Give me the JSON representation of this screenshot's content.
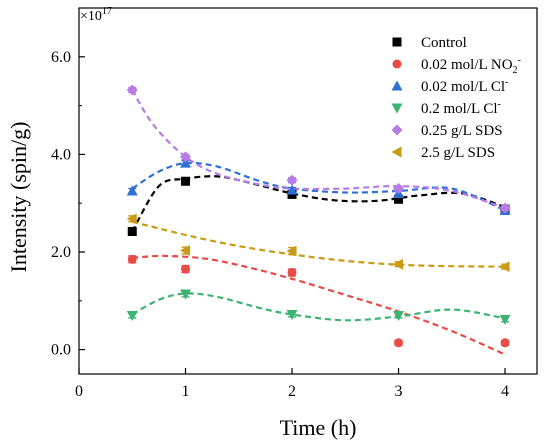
{
  "chart_data": {
    "type": "scatter",
    "xlabel": "Time (h)",
    "ylabel": "Intensity (spin/g)",
    "y_multiplier_label": "×10",
    "y_multiplier_exp": "17",
    "xlim": [
      0,
      4.3
    ],
    "ylim": [
      -0.5,
      7.0
    ],
    "xticks": [
      0,
      1,
      2,
      3,
      4
    ],
    "xtick_labels": [
      "0",
      "1",
      "2",
      "3",
      "4"
    ],
    "yticks": [
      0,
      2,
      4,
      6
    ],
    "ytick_labels": [
      "0.0",
      "2.0",
      "4.0",
      "6.0"
    ],
    "grid": false,
    "legend_position": "top-right",
    "x": [
      0.5,
      1,
      2,
      3,
      4
    ],
    "series": [
      {
        "name": "Control",
        "label_main": "Control",
        "label_sup": "",
        "color": "#000000",
        "marker": "square",
        "values": [
          2.42,
          3.45,
          3.18,
          3.08,
          2.88
        ],
        "errors": [
          0.06,
          0.07,
          0.07,
          0.06,
          0.06
        ],
        "fit": [
          [
            0.5,
            2.42
          ],
          [
            0.75,
            3.35
          ],
          [
            1.0,
            3.5
          ],
          [
            1.3,
            3.55
          ],
          [
            1.6,
            3.42
          ],
          [
            2.0,
            3.2
          ],
          [
            2.4,
            3.06
          ],
          [
            2.8,
            3.05
          ],
          [
            3.2,
            3.16
          ],
          [
            3.6,
            3.2
          ],
          [
            4.0,
            2.92
          ]
        ]
      },
      {
        "name": "0.02 mol/L NO2-",
        "label_main": "0.02 mol/L NO",
        "label_sub": "2",
        "label_sup": "-",
        "color": "#e84a45",
        "marker": "circle",
        "values": [
          1.85,
          1.65,
          1.58,
          0.14,
          0.14
        ],
        "errors": [
          0.07,
          0.07,
          0.07,
          0.05,
          0.05
        ],
        "fit": [
          [
            0.5,
            1.88
          ],
          [
            0.8,
            1.92
          ],
          [
            1.2,
            1.86
          ],
          [
            1.6,
            1.68
          ],
          [
            2.0,
            1.45
          ],
          [
            2.5,
            1.12
          ],
          [
            3.0,
            0.78
          ],
          [
            3.5,
            0.38
          ],
          [
            4.0,
            -0.1
          ]
        ]
      },
      {
        "name": "0.02 mol/L Cl-",
        "label_main": "0.02 mol/L Cl",
        "label_sup": "-",
        "color": "#2f6fd6",
        "marker": "triangle-up",
        "values": [
          3.25,
          3.82,
          3.27,
          3.2,
          2.85
        ],
        "errors": [
          0.05,
          0.05,
          0.05,
          0.05,
          0.05
        ],
        "fit": [
          [
            0.5,
            3.3
          ],
          [
            0.75,
            3.65
          ],
          [
            1.0,
            3.82
          ],
          [
            1.3,
            3.75
          ],
          [
            1.7,
            3.45
          ],
          [
            2.0,
            3.3
          ],
          [
            2.5,
            3.22
          ],
          [
            3.0,
            3.25
          ],
          [
            3.5,
            3.3
          ],
          [
            4.0,
            2.85
          ]
        ]
      },
      {
        "name": "0.2 mol/L Cl-",
        "label_main": "0.2 mol/L Cl",
        "label_sup": "-",
        "color": "#3cb371",
        "marker": "triangle-down",
        "values": [
          0.7,
          1.14,
          0.72,
          0.7,
          0.62
        ],
        "errors": [
          0.05,
          0.06,
          0.05,
          0.05,
          0.05
        ],
        "fit": [
          [
            0.5,
            0.72
          ],
          [
            0.75,
            1.02
          ],
          [
            1.0,
            1.15
          ],
          [
            1.3,
            1.08
          ],
          [
            1.7,
            0.85
          ],
          [
            2.0,
            0.72
          ],
          [
            2.5,
            0.6
          ],
          [
            3.0,
            0.68
          ],
          [
            3.5,
            0.82
          ],
          [
            4.0,
            0.64
          ]
        ]
      },
      {
        "name": "0.25 g/L SDS",
        "label_main": "0.25 g/L SDS",
        "label_sup": "",
        "color": "#b57be6",
        "marker": "diamond",
        "values": [
          5.32,
          3.95,
          3.47,
          3.3,
          2.9
        ],
        "errors": [
          0.05,
          0.05,
          0.05,
          0.05,
          0.05
        ],
        "fit": [
          [
            0.5,
            5.32
          ],
          [
            0.7,
            4.6
          ],
          [
            1.0,
            3.95
          ],
          [
            1.3,
            3.6
          ],
          [
            1.7,
            3.38
          ],
          [
            2.0,
            3.3
          ],
          [
            2.5,
            3.3
          ],
          [
            3.0,
            3.35
          ],
          [
            3.5,
            3.25
          ],
          [
            4.0,
            2.9
          ]
        ]
      },
      {
        "name": "2.5 g/L SDS",
        "label_main": "2.5 g/L SDS",
        "label_sup": "",
        "color": "#c99a12",
        "marker": "triangle-left",
        "values": [
          2.68,
          2.03,
          2.02,
          1.75,
          1.7
        ],
        "errors": [
          0.06,
          0.07,
          0.07,
          0.05,
          0.05
        ],
        "fit": [
          [
            0.5,
            2.62
          ],
          [
            1.0,
            2.35
          ],
          [
            1.5,
            2.12
          ],
          [
            2.0,
            1.95
          ],
          [
            2.5,
            1.82
          ],
          [
            3.0,
            1.74
          ],
          [
            3.5,
            1.71
          ],
          [
            4.0,
            1.7
          ]
        ]
      }
    ]
  }
}
